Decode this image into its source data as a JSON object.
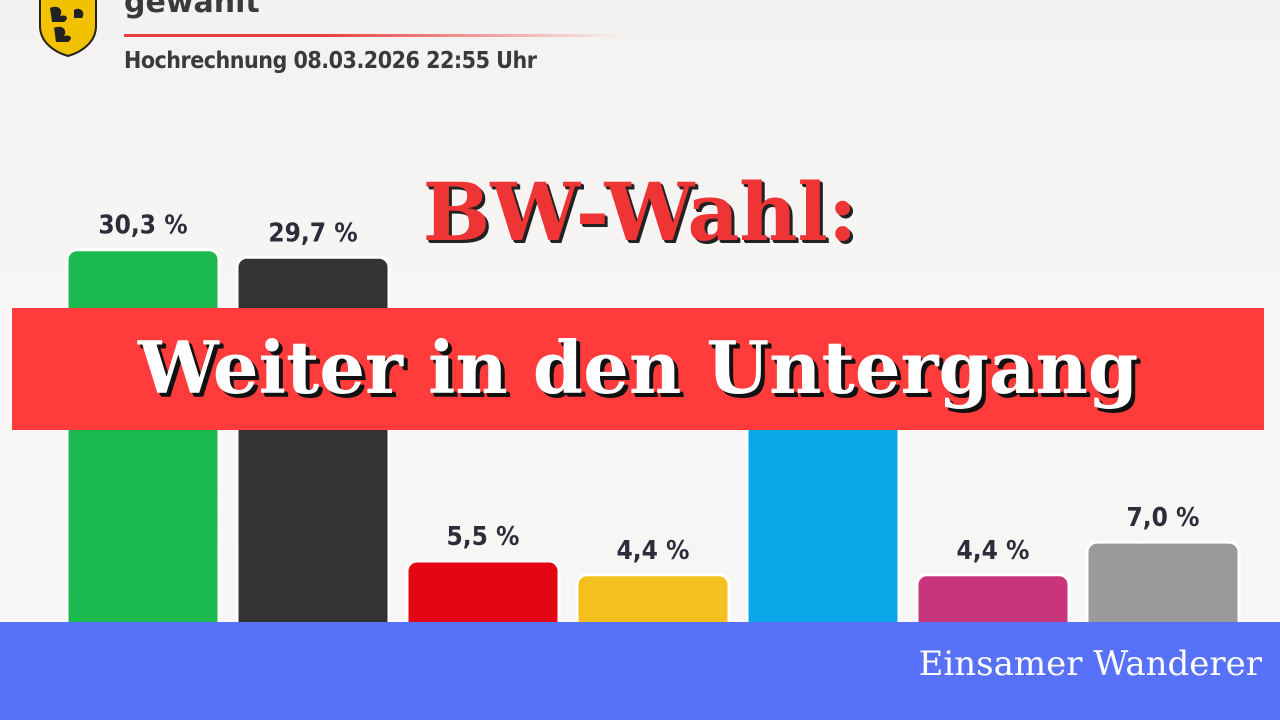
{
  "header": {
    "title": "gewählt",
    "subtitle": "Hochrechnung 08.03.2026 22:55 Uhr",
    "logo": "baden-wuerttemberg-coat-of-arms"
  },
  "headline": {
    "top": "BW-Wahl:",
    "main": "Weiter in den Untergang"
  },
  "footer": {
    "author": "Einsamer Wanderer"
  },
  "colors": {
    "headline_red": "#ee3434",
    "banner_red": "#ff3b3b",
    "footer_blue": "#5772f8"
  },
  "chart_data": {
    "type": "bar",
    "categories": [
      "",
      "",
      "",
      "",
      "",
      "",
      ""
    ],
    "values": [
      30.3,
      29.7,
      5.5,
      4.4,
      19.0,
      4.4,
      7.0
    ],
    "labels": [
      "30,3 %",
      "29,7 %",
      "5,5 %",
      "4,4 %",
      "",
      "4,4 %",
      "7,0 %"
    ],
    "colors": [
      "#1cb94f",
      "#333333",
      "#e30613",
      "#f4c020",
      "#0aa8e8",
      "#c8357a",
      "#9a9a9a"
    ],
    "ylim": [
      0,
      40
    ],
    "grid": false,
    "title": "",
    "xlabel": "",
    "ylabel": ""
  }
}
